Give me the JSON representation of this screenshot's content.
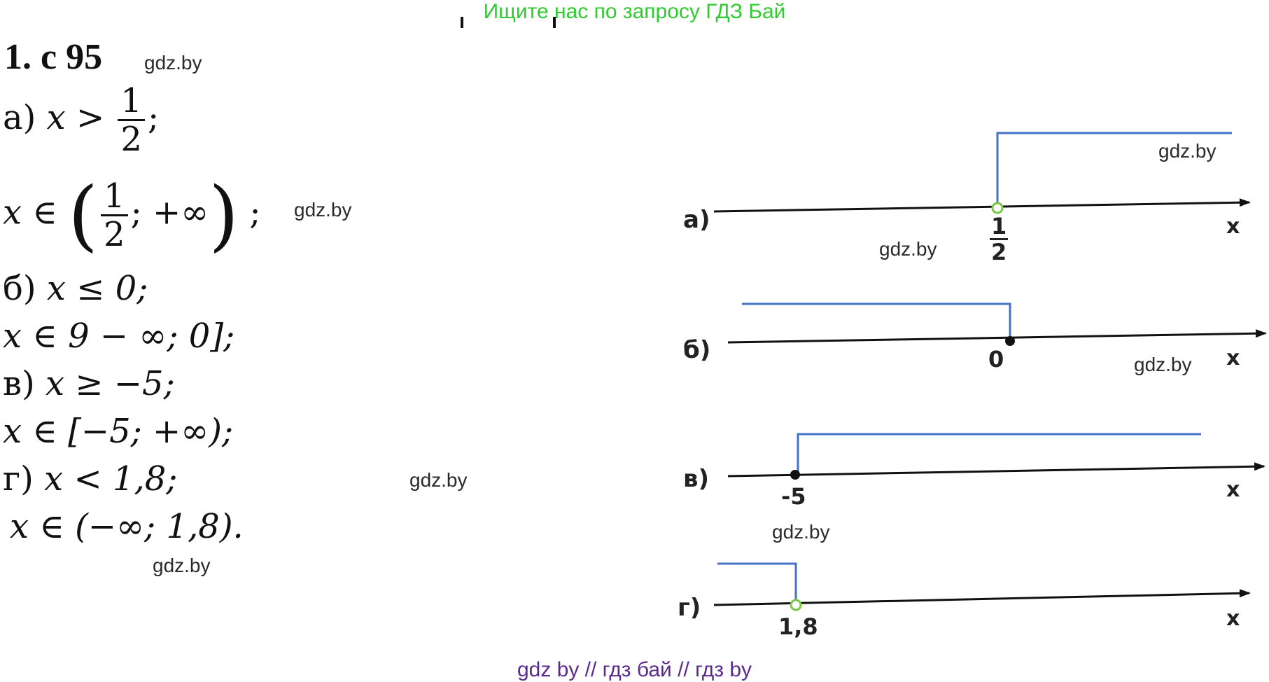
{
  "banner": "Ищите нас по запросу ГДЗ Бай",
  "title": "1. с 95",
  "watermark": "gdz.by",
  "footer": "gdz by  //  гдз бай  //  гдз by",
  "solutions": {
    "a1_label": "а)",
    "a1_expr": "x >",
    "a1_num": "1",
    "a1_den": "2",
    "a1_end": ";",
    "a2_start": "x ∈",
    "a2_num": "1",
    "a2_den": "2",
    "a2_rest": "; +∞",
    "a2_end": ";",
    "b1_label": "б)",
    "b1_expr": "x ≤ 0;",
    "b2_expr": "x ∈ 9 − ∞; 0];",
    "c1_label": "в)",
    "c1_expr": "x ≥ −5;",
    "c2_expr": "x ∈ [−5; +∞);",
    "d1_label": "г)",
    "d1_expr": "x < 1,8;",
    "d2_expr": "x ∈ (−∞; 1,8)."
  },
  "number_lines": {
    "a": {
      "label": "а)",
      "point_num": "1",
      "point_den": "2",
      "axis": "x"
    },
    "b": {
      "label": "б)",
      "point": "0",
      "axis": "x"
    },
    "c": {
      "label": "в)",
      "point": "-5",
      "axis": "x"
    },
    "d": {
      "label": "г)",
      "point": "1,8",
      "axis": "x"
    }
  },
  "colors": {
    "banner": "#2ecc2e",
    "footer": "#5b2a8f",
    "shade_line": "#4472c4",
    "open_point": "#7ac943"
  }
}
